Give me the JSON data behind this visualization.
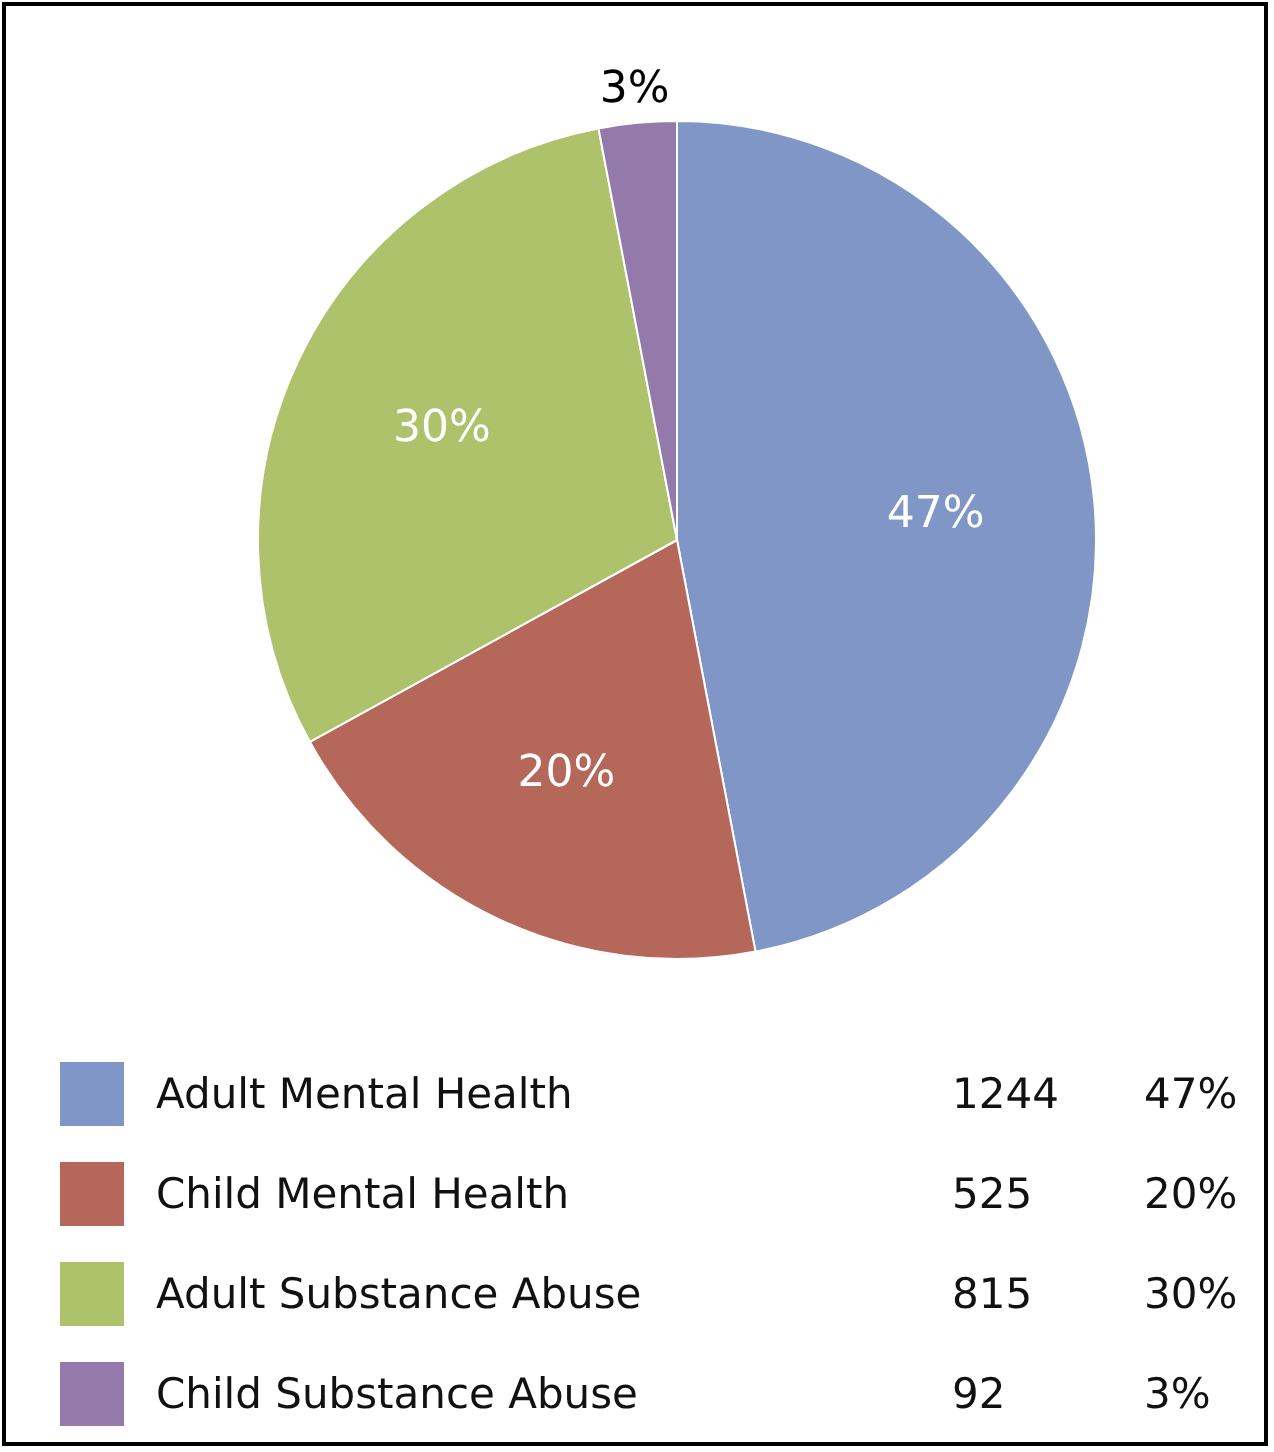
{
  "chart_data": {
    "type": "pie",
    "categories": [
      "Adult Mental Health",
      "Child Mental Health",
      "Adult Substance Abuse",
      "Child Substance Abuse"
    ],
    "values": [
      47,
      20,
      30,
      3
    ],
    "colors": [
      "#7f96c6",
      "#b5675a",
      "#adc26b",
      "#9479ab"
    ],
    "value_labels": [
      "47%",
      "20%",
      "30%",
      "3%"
    ],
    "annotations": [
      "1244",
      "525",
      "815",
      "92"
    ],
    "legend": "bottom"
  }
}
